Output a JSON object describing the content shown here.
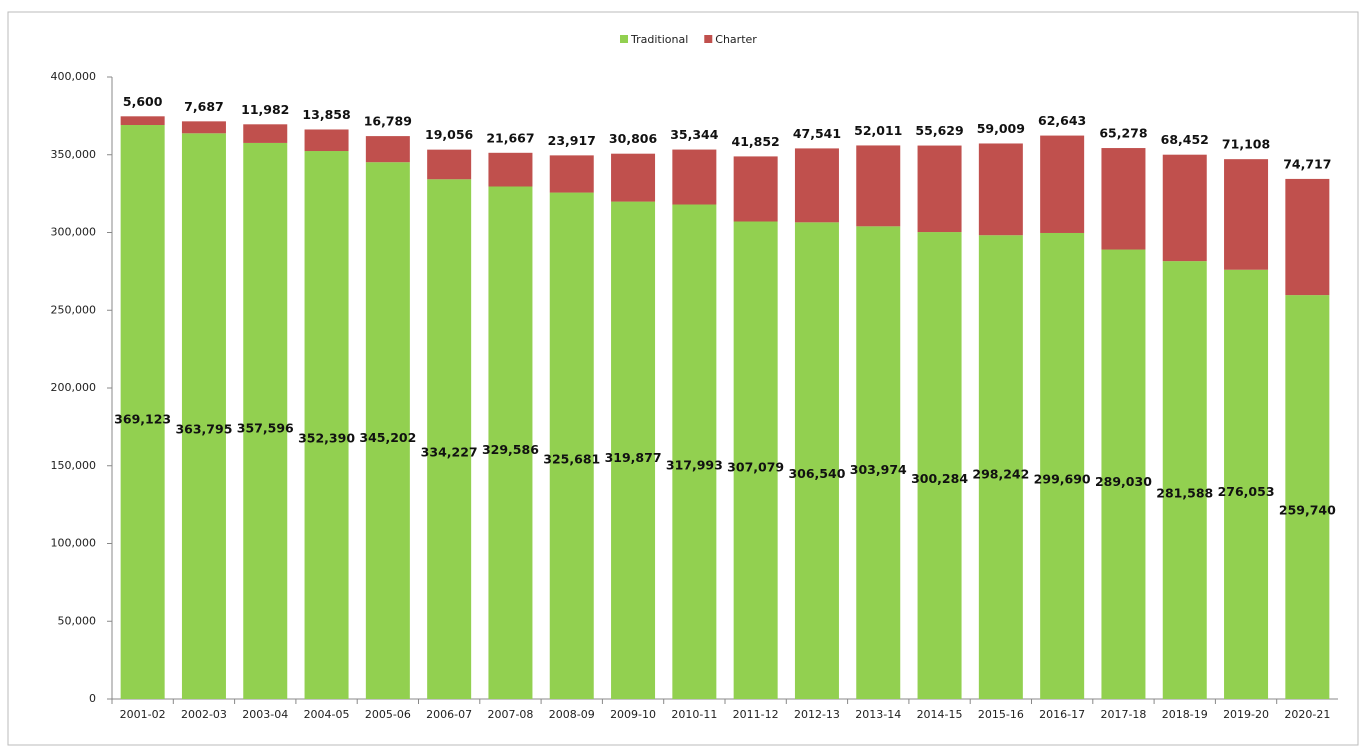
{
  "chart_data": {
    "type": "stacked_bar",
    "categories": [
      "2001-02",
      "2002-03",
      "2003-04",
      "2004-05",
      "2005-06",
      "2006-07",
      "2007-08",
      "2008-09",
      "2009-10",
      "2010-11",
      "2011-12",
      "2012-13",
      "2013-14",
      "2014-15",
      "2015-16",
      "2016-17",
      "2017-18",
      "2018-19",
      "2019-20",
      "2020-21"
    ],
    "series": [
      {
        "name": "Traditional",
        "color": "#92d050",
        "values": [
          369123,
          363795,
          357596,
          352390,
          345202,
          334227,
          329586,
          325681,
          319877,
          317993,
          307079,
          306540,
          303974,
          300284,
          298242,
          299690,
          289030,
          281588,
          276053,
          259740
        ],
        "value_labels": [
          "369,123",
          "363,795",
          "357,596",
          "352,390",
          "345,202",
          "334,227",
          "329,586",
          "325,681",
          "319,877",
          "317,993",
          "307,079",
          "306,540",
          "303,974",
          "300,284",
          "298,242",
          "299,690",
          "289,030",
          "281,588",
          "276,053",
          "259,740"
        ]
      },
      {
        "name": "Charter",
        "color": "#c0504d",
        "values": [
          5600,
          7687,
          11982,
          13858,
          16789,
          19056,
          21667,
          23917,
          30806,
          35344,
          41852,
          47541,
          52011,
          55629,
          59009,
          62643,
          65278,
          68452,
          71108,
          74717
        ],
        "value_labels": [
          "5,600",
          "7,687",
          "11,982",
          "13,858",
          "16,789",
          "19,056",
          "21,667",
          "23,917",
          "30,806",
          "35,344",
          "41,852",
          "47,541",
          "52,011",
          "55,629",
          "59,009",
          "62,643",
          "65,278",
          "68,452",
          "71,108",
          "74,717"
        ]
      }
    ],
    "ylim": [
      0,
      400000
    ],
    "yticks": [
      0,
      {
        "value": 50000,
        "label": "50,000"
      },
      {
        "value": 100000,
        "label": "100,000"
      },
      {
        "value": 150000,
        "label": "150,000"
      },
      {
        "value": 200000,
        "label": "200,000"
      },
      {
        "value": 250000,
        "label": "250,000"
      },
      {
        "value": 300000,
        "label": "300,000"
      },
      {
        "value": 350000,
        "label": "350,000"
      },
      {
        "value": 400000,
        "label": "400,000"
      }
    ],
    "legend": "top",
    "grid": false
  }
}
